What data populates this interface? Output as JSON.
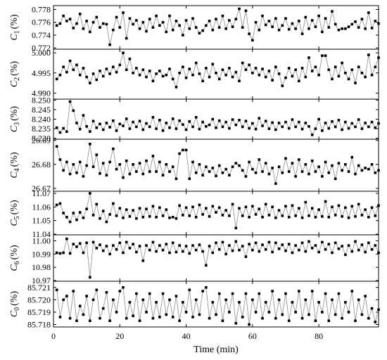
{
  "chart_data": {
    "type": "scatter",
    "x_label": "Time (min)",
    "x_range": [
      0,
      98
    ],
    "x_ticks": [
      0,
      20,
      40,
      60,
      80
    ],
    "panels": [
      {
        "ylabel_var": "C",
        "ylabel_sub": "1",
        "ylabel_unit": "(%)",
        "y_range": [
          0.7718,
          0.7786
        ],
        "y_ticks": [
          "0.778",
          "0.776",
          "0.774",
          "0.772"
        ],
        "y_tick_values": [
          0.778,
          0.776,
          0.774,
          0.772
        ],
        "values": [
          0.7755,
          0.7758,
          0.777,
          0.7762,
          0.7765,
          0.7751,
          0.7758,
          0.7773,
          0.775,
          0.7762,
          0.7745,
          0.776,
          0.7768,
          0.7752,
          0.7758,
          0.7757,
          0.7725,
          0.7748,
          0.7768,
          0.7752,
          0.7775,
          0.7735,
          0.7766,
          0.7757,
          0.7763,
          0.775,
          0.776,
          0.7746,
          0.7765,
          0.7752,
          0.777,
          0.7755,
          0.776,
          0.7745,
          0.777,
          0.7748,
          0.7762,
          0.7755,
          0.774,
          0.7763,
          0.775,
          0.7766,
          0.7752,
          0.7743,
          0.7747,
          0.7755,
          0.7762,
          0.7748,
          0.7765,
          0.7752,
          0.777,
          0.775,
          0.7763,
          0.7753,
          0.7765,
          0.7781,
          0.7752,
          0.7778,
          0.7742,
          0.7732,
          0.776,
          0.7748,
          0.777,
          0.7756,
          0.7762,
          0.7753,
          0.7766,
          0.7748,
          0.7755,
          0.7766,
          0.7749,
          0.7758,
          0.775,
          0.7762,
          0.7742,
          0.7768,
          0.775,
          0.7763,
          0.7753,
          0.777,
          0.7745,
          0.7766,
          0.7752,
          0.7777,
          0.7757,
          0.7748,
          0.775,
          0.775,
          0.7753,
          0.7757,
          0.7761,
          0.7752,
          0.7765,
          0.775,
          0.7775,
          0.7751,
          0.7762,
          0.7758
        ]
      },
      {
        "ylabel_var": "C",
        "ylabel_sub": "2",
        "ylabel_unit": "(%)",
        "y_range": [
          4.9885,
          5.0009
        ],
        "y_ticks": [
          "5.000",
          "4.995",
          "4.990"
        ],
        "y_tick_values": [
          5.0,
          4.995,
          4.99
        ],
        "values": [
          4.9935,
          4.9945,
          4.9965,
          4.9952,
          4.998,
          4.9958,
          4.997,
          4.9945,
          4.9962,
          4.994,
          4.9925,
          4.9948,
          4.9933,
          4.9955,
          4.9942,
          4.996,
          4.9948,
          4.9965,
          4.9952,
          4.997,
          5.0,
          4.9958,
          4.9985,
          4.995,
          4.9962,
          4.9945,
          4.9958,
          4.994,
          4.9955,
          4.993,
          4.9948,
          4.9955,
          4.9942,
          4.9945,
          4.996,
          4.9935,
          4.9915,
          4.995,
          4.9965,
          4.9938,
          4.996,
          4.9945,
          4.9975,
          4.9948,
          4.993,
          4.9962,
          4.994,
          4.9972,
          4.995,
          4.9935,
          4.9958,
          4.9945,
          4.9962,
          4.994,
          4.9952,
          4.993,
          4.9975,
          4.9958,
          4.997,
          4.995,
          4.9962,
          4.9945,
          4.996,
          4.994,
          4.9955,
          4.9932,
          4.9965,
          4.9948,
          4.9918,
          4.9938,
          4.9962,
          4.9942,
          4.9958,
          4.993,
          4.9962,
          4.994,
          4.9988,
          4.9955,
          4.9965,
          4.9945,
          4.9993,
          4.9993,
          4.9958,
          4.9935,
          4.9965,
          4.9942,
          4.9975,
          4.995,
          4.9935,
          4.9958,
          4.9925,
          4.9965,
          4.995,
          4.994,
          4.9995,
          4.9945,
          4.9965,
          4.9988
        ]
      },
      {
        "ylabel_var": "C",
        "ylabel_sub": "3",
        "ylabel_unit": "(%)",
        "y_range": [
          8.2295,
          8.2505
        ],
        "y_ticks": [
          "8.250",
          "8.245",
          "8.240",
          "8.235",
          "8.230"
        ],
        "y_tick_values": [
          8.25,
          8.245,
          8.24,
          8.235,
          8.23
        ],
        "values": [
          8.2355,
          8.233,
          8.2352,
          8.2335,
          8.2492,
          8.2445,
          8.238,
          8.2348,
          8.242,
          8.2362,
          8.2335,
          8.239,
          8.2355,
          8.2375,
          8.2345,
          8.238,
          8.2358,
          8.2392,
          8.234,
          8.2375,
          8.2365,
          8.2402,
          8.235,
          8.2385,
          8.236,
          8.239,
          8.2345,
          8.2378,
          8.236,
          8.241,
          8.235,
          8.2395,
          8.234,
          8.238,
          8.2355,
          8.2402,
          8.235,
          8.2392,
          8.2372,
          8.2345,
          8.2388,
          8.236,
          8.241,
          8.2348,
          8.2385,
          8.2362,
          8.237,
          8.24,
          8.2355,
          8.2392,
          8.236,
          8.2385,
          8.2352,
          8.2398,
          8.237,
          8.2395,
          8.236,
          8.239,
          8.2352,
          8.2378,
          8.2348,
          8.2405,
          8.2365,
          8.239,
          8.235,
          8.2382,
          8.2345,
          8.238,
          8.236,
          8.2385,
          8.2352,
          8.2398,
          8.236,
          8.2385,
          8.2348,
          8.238,
          8.2362,
          8.2318,
          8.235,
          8.24,
          8.234,
          8.238,
          8.2352,
          8.2388,
          8.236,
          8.2395,
          8.2345,
          8.2385,
          8.2352,
          8.2378,
          8.236,
          8.2398,
          8.235,
          8.238,
          8.236,
          8.2385,
          8.2355,
          8.2378
        ]
      },
      {
        "ylabel_var": "C",
        "ylabel_sub": "4",
        "ylabel_unit": "(%)",
        "y_range": [
          26.6688,
          26.6905
        ],
        "y_ticks": [
          "26.69",
          "26.68",
          "26.67"
        ],
        "y_tick_values": [
          26.69,
          26.68,
          26.67
        ],
        "values": [
          26.6875,
          26.682,
          26.6775,
          26.681,
          26.676,
          26.68,
          26.6765,
          26.681,
          26.675,
          26.6795,
          26.6885,
          26.679,
          26.684,
          26.6762,
          26.6805,
          26.6755,
          26.681,
          26.6865,
          26.678,
          26.68,
          26.6745,
          26.6815,
          26.676,
          26.68,
          26.677,
          26.6805,
          26.676,
          26.6815,
          26.677,
          26.6835,
          26.677,
          26.681,
          26.6755,
          26.68,
          26.677,
          26.679,
          26.674,
          26.6845,
          26.686,
          26.686,
          26.674,
          26.681,
          26.6765,
          26.68,
          26.6755,
          26.679,
          26.677,
          26.6785,
          26.6752,
          26.6795,
          26.6765,
          26.678,
          26.6755,
          26.679,
          26.6805,
          26.6795,
          26.6775,
          26.675,
          26.681,
          26.678,
          26.6765,
          26.682,
          26.677,
          26.6805,
          26.676,
          26.6785,
          26.672,
          26.679,
          26.6765,
          26.6825,
          26.677,
          26.6805,
          26.675,
          26.682,
          26.677,
          26.68,
          26.676,
          26.6815,
          26.677,
          26.679,
          26.675,
          26.681,
          26.6765,
          26.6795,
          26.674,
          26.6805,
          26.6775,
          26.68,
          26.677,
          26.683,
          26.676,
          26.6795,
          26.6775,
          26.6785,
          26.678,
          26.68,
          26.6765,
          26.6775
        ]
      },
      {
        "ylabel_var": "C",
        "ylabel_sub": "5",
        "ylabel_unit": "(%)",
        "y_range": [
          11.0395,
          11.0715
        ],
        "y_ticks": [
          "11.07",
          "11.06",
          "11.05",
          "11.04"
        ],
        "y_tick_values": [
          11.07,
          11.06,
          11.05,
          11.04
        ],
        "values": [
          11.0615,
          11.0625,
          11.0555,
          11.0525,
          11.049,
          11.0555,
          11.0505,
          11.056,
          11.052,
          11.0585,
          11.07,
          11.054,
          11.062,
          11.0515,
          11.057,
          11.049,
          11.0545,
          11.0625,
          11.0535,
          11.059,
          11.052,
          11.058,
          11.053,
          11.0575,
          11.0515,
          11.059,
          11.0525,
          11.0585,
          11.053,
          11.0605,
          11.0525,
          11.0595,
          11.0535,
          11.058,
          11.052,
          11.0525,
          11.0515,
          11.061,
          11.054,
          11.0595,
          11.0535,
          11.06,
          11.0525,
          11.0615,
          11.0545,
          11.059,
          11.053,
          11.0605,
          11.056,
          11.0595,
          11.054,
          11.0575,
          11.0535,
          11.062,
          11.0445,
          11.059,
          11.0535,
          11.06,
          11.0525,
          11.0605,
          11.0545,
          11.0585,
          11.0525,
          11.062,
          11.054,
          11.06,
          11.052,
          11.0575,
          11.0535,
          11.0605,
          11.0525,
          11.061,
          11.0535,
          11.059,
          11.052,
          11.0635,
          11.0535,
          11.059,
          11.0525,
          11.058,
          11.053,
          11.064,
          11.0525,
          11.06,
          11.054,
          11.061,
          11.053,
          11.0595,
          11.052,
          11.0605,
          11.053,
          11.062,
          11.054,
          11.058,
          11.0525,
          11.0595,
          11.0535,
          11.061
        ]
      },
      {
        "ylabel_var": "C",
        "ylabel_sub": "6",
        "ylabel_unit": "(%)",
        "y_range": [
          10.9695,
          11.0045
        ],
        "y_ticks": [
          "11.00",
          "10.99",
          "10.98",
          "10.97"
        ],
        "y_tick_values": [
          11.0,
          10.99,
          10.98,
          10.97
        ],
        "values": [
          10.991,
          10.9905,
          10.991,
          11.0015,
          10.9905,
          10.9975,
          10.9955,
          10.998,
          10.991,
          10.9985,
          10.9725,
          10.999,
          10.9945,
          10.997,
          10.9925,
          10.996,
          10.99,
          10.9965,
          10.9935,
          10.9985,
          10.991,
          10.999,
          10.9945,
          10.9975,
          10.9915,
          10.996,
          10.985,
          10.9965,
          10.993,
          10.999,
          10.992,
          10.9965,
          10.993,
          10.9975,
          10.991,
          10.9985,
          10.9915,
          10.9965,
          10.992,
          10.996,
          10.9905,
          10.9965,
          10.993,
          10.997,
          10.992,
          10.9815,
          10.996,
          10.991,
          10.9985,
          10.9935,
          10.999,
          10.99,
          10.9965,
          10.9925,
          10.9995,
          10.993,
          10.996,
          10.988,
          10.9975,
          10.993,
          10.9985,
          10.992,
          10.997,
          10.9935,
          10.999,
          10.9915,
          10.9985,
          10.994,
          10.997,
          10.9925,
          10.9975,
          10.991,
          10.9965,
          10.993,
          10.9985,
          10.992,
          10.9995,
          10.9945,
          10.9965,
          10.9915,
          10.999,
          10.9935,
          10.9975,
          10.991,
          10.9985,
          10.994,
          10.996,
          10.9895,
          10.9965,
          10.992,
          10.9995,
          10.993,
          10.997,
          10.9915,
          10.9985,
          10.9935,
          10.9965,
          10.991
        ]
      },
      {
        "ylabel_var": "C",
        "ylabel_sub": "0",
        "ylabel_unit": "(%)",
        "y_range": [
          85.7178,
          85.7215
        ],
        "y_ticks": [
          "85.721",
          "85.720",
          "85.719",
          "85.718"
        ],
        "y_tick_values": [
          85.721,
          85.72,
          85.719,
          85.718
        ],
        "values": [
          85.7208,
          85.7186,
          85.72,
          85.7203,
          85.7185,
          85.7207,
          85.7183,
          85.7195,
          85.7188,
          85.7203,
          85.7183,
          85.72,
          85.7208,
          85.7185,
          85.7193,
          85.7206,
          85.7183,
          85.72,
          85.719,
          85.7207,
          85.721,
          85.7185,
          85.7198,
          85.7187,
          85.7205,
          85.7183,
          85.72,
          85.719,
          85.7205,
          85.7185,
          85.7198,
          85.7186,
          85.7205,
          85.7188,
          85.72,
          85.7186,
          85.7203,
          85.7183,
          85.7198,
          85.719,
          85.7208,
          85.7186,
          85.72,
          85.7188,
          85.7207,
          85.721,
          85.7185,
          85.7198,
          85.7188,
          85.7205,
          85.7183,
          85.72,
          85.719,
          85.7205,
          85.7181,
          85.7198,
          85.7186,
          85.7205,
          85.718,
          85.72,
          85.719,
          85.7205,
          85.7185,
          85.7198,
          85.719,
          85.7207,
          85.7185,
          85.72,
          85.7188,
          85.7205,
          85.7183,
          85.7198,
          85.719,
          85.7207,
          85.7185,
          85.72,
          85.7188,
          85.7207,
          85.7183,
          85.7198,
          85.719,
          85.7205,
          85.7183,
          85.72,
          85.7188,
          85.7205,
          85.7185,
          85.7198,
          85.719,
          85.7207,
          85.7183,
          85.72,
          85.7188,
          85.7203,
          85.7185,
          85.7193,
          85.7182,
          85.7192
        ]
      }
    ]
  }
}
